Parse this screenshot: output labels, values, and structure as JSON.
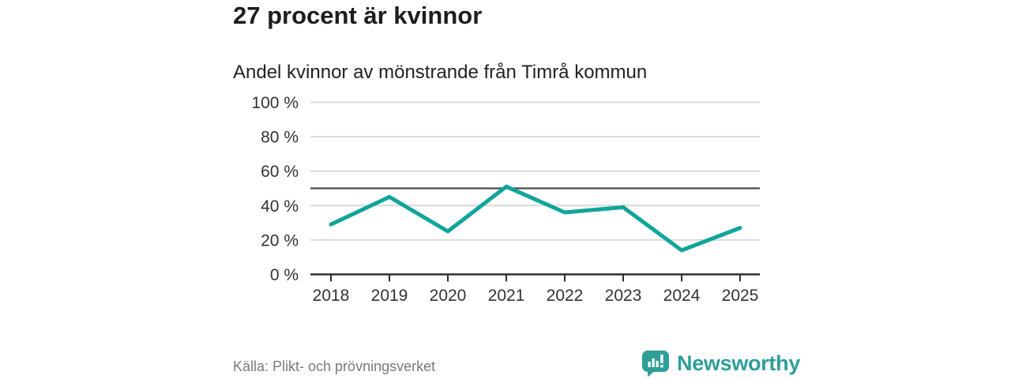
{
  "page": {
    "background_color": "#ffffff"
  },
  "chart_data": {
    "type": "line",
    "title": "27 procent är kvinnor",
    "subtitle": "Andel kvinnor av mönstrande från Timrå kommun",
    "categories": [
      "2018",
      "2019",
      "2020",
      "2021",
      "2022",
      "2023",
      "2024",
      "2025"
    ],
    "series": [
      {
        "name": "Andel kvinnor av mönstrande",
        "values": [
          29,
          45,
          25,
          51,
          36,
          39,
          14,
          27
        ]
      }
    ],
    "unit": "%",
    "xlabel": "",
    "ylabel": "",
    "ylim": [
      0,
      100
    ],
    "y_tick_values": [
      0,
      20,
      40,
      60,
      80,
      100
    ],
    "y_tick_suffix": " %",
    "reference_line_value": 50,
    "grid": "horizontal",
    "legend_position": "none",
    "colors": {
      "line": "#10a49a",
      "gridline": "#d9d9d9",
      "reference_line": "#4a4a4a",
      "axis": "#2e2e2e",
      "tick_text": "#333333"
    }
  },
  "footer": {
    "source": "Källa: Plikt- och prövningsverket",
    "brand": "Newsworthy",
    "brand_color": "#2f9e99"
  }
}
